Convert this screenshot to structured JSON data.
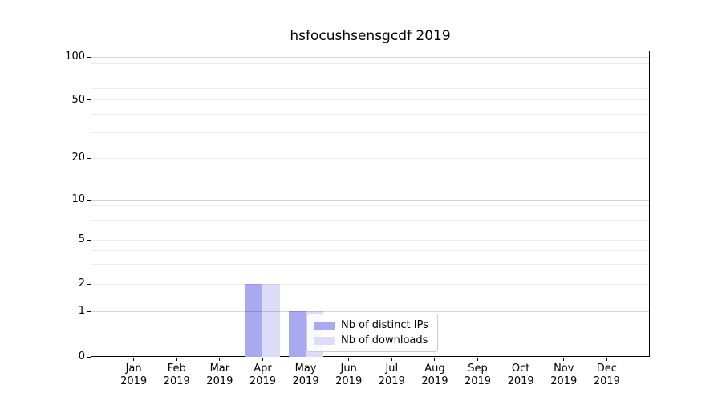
{
  "chart_data": {
    "type": "bar",
    "title": "hsfocushsensgcdf 2019",
    "categories": [
      "Jan 2019",
      "Feb 2019",
      "Mar 2019",
      "Apr 2019",
      "May 2019",
      "Jun 2019",
      "Jul 2019",
      "Aug 2019",
      "Sep 2019",
      "Oct 2019",
      "Nov 2019",
      "Dec 2019"
    ],
    "series": [
      {
        "name": "Nb of distinct IPs",
        "color": "#a9a9f2",
        "values": [
          0,
          0,
          0,
          2,
          1,
          0,
          0,
          0,
          0,
          0,
          0,
          0
        ]
      },
      {
        "name": "Nb of downloads",
        "color": "#dcdcf8",
        "values": [
          0,
          0,
          0,
          2,
          1,
          0,
          0,
          0,
          0,
          0,
          0,
          0
        ]
      }
    ],
    "xlabel": "",
    "ylabel": "",
    "yscale": "symlog",
    "ylim": [
      0,
      110
    ],
    "y_ticks": [
      0,
      1,
      2,
      5,
      10,
      20,
      50,
      100
    ],
    "grid": {
      "axis": "y",
      "major": true,
      "minor": true,
      "drawn_over_bars": true
    },
    "legend": {
      "position": "inside-bottom-center",
      "items": [
        "Nb of distinct IPs",
        "Nb of downloads"
      ]
    },
    "colors": {
      "major_grid": "rgba(0,0,0,0.16)",
      "minor_grid": "rgba(0,0,0,0.075)",
      "axis": "#000000",
      "background": "#ffffff"
    },
    "axis_layout": {
      "y_anchor_fractions": {
        "0": 0,
        "1": 0.149,
        "2": 0.238,
        "5": 0.382,
        "10": 0.513,
        "20": 0.649,
        "50": 0.838,
        "100": 0.979
      },
      "major_grid_values": [
        1,
        10,
        100
      ],
      "minor_grid_values": [
        2,
        3,
        4,
        5,
        6,
        7,
        8,
        9,
        20,
        30,
        40,
        50,
        60,
        70,
        80,
        90
      ],
      "x_slots": 13,
      "bar_width_fraction": 0.4
    }
  }
}
